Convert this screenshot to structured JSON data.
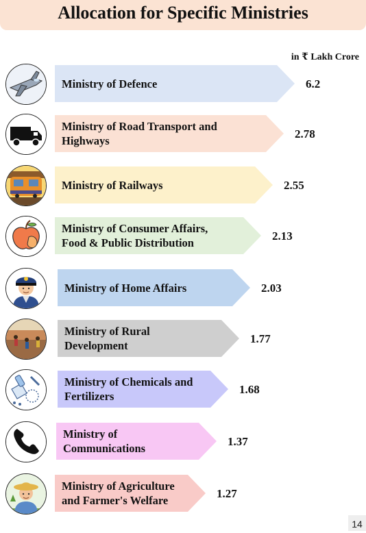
{
  "title": "Allocation for Specific Ministries",
  "unit": "in ₹ Lakh Crore",
  "page_number": "14",
  "chart_data": {
    "type": "bar",
    "title": "Allocation for Specific Ministries",
    "ylabel": "in ₹ Lakh Crore",
    "categories": [
      "Ministry of Defence",
      "Ministry of Road Transport and Highways",
      "Ministry of Railways",
      "Ministry of Consumer Affairs, Food & Public Distribution",
      "Ministry of Home Affairs",
      "Ministry of Rural Development",
      "Ministry of Chemicals and Fertilizers",
      "Ministry of Communications",
      "Ministry of Agriculture and Farmer's Welfare"
    ],
    "values": [
      6.2,
      2.78,
      2.55,
      2.13,
      2.03,
      1.77,
      1.68,
      1.37,
      1.27
    ],
    "value_labels": [
      "6.2",
      "2.78",
      "2.55",
      "2.13",
      "2.03",
      "1.77",
      "1.68",
      "1.37",
      "1.27"
    ],
    "label_lines": [
      [
        "Ministry of Defence"
      ],
      [
        "Ministry of Road Transport and",
        "Highways"
      ],
      [
        "Ministry of Railways"
      ],
      [
        "Ministry of Consumer Affairs,",
        "Food & Public Distribution"
      ],
      [
        "Ministry of Home Affairs"
      ],
      [
        "Ministry of Rural",
        "Development"
      ],
      [
        "Ministry of Chemicals and",
        "Fertilizers"
      ],
      [
        "Ministry of",
        "Communications"
      ],
      [
        "Ministry of Agriculture",
        "and Farmer's Welfare"
      ]
    ],
    "colors": [
      "#dbe5f5",
      "#fbe1d4",
      "#fdf1cb",
      "#e2f0da",
      "#bed5ef",
      "#cfcfcf",
      "#c8c8fa",
      "#f8c7f4",
      "#f9cbc8"
    ],
    "icons": [
      "fighter-jet-icon",
      "truck-icon",
      "train-icon",
      "apple-icon",
      "police-officer-icon",
      "field-workers-icon",
      "chemicals-icon",
      "telephone-icon",
      "farmer-icon"
    ]
  }
}
